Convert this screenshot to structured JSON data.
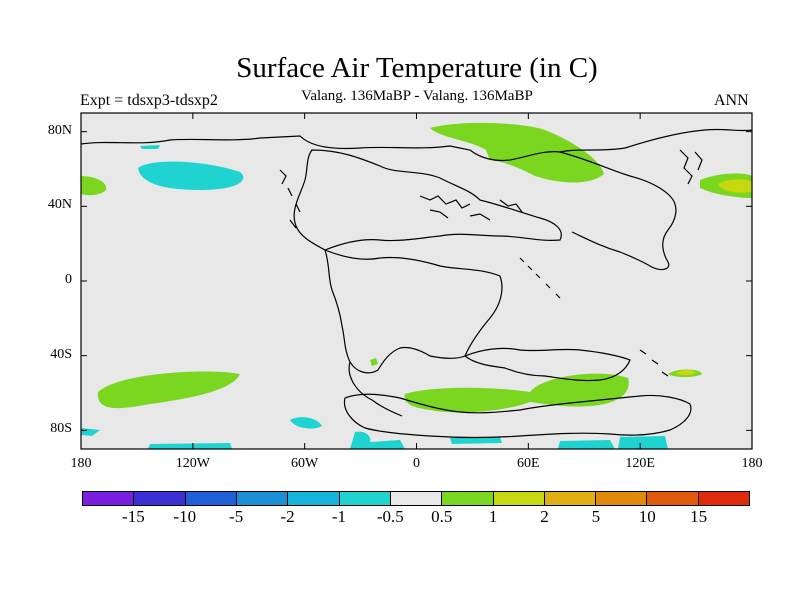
{
  "title": "Surface Air Temperature (in C)",
  "subtitle": "Valang. 136MaBP - Valang. 136MaBP",
  "expt": "Expt = tdsxp3-tdsxp2",
  "period": "ANN",
  "map": {
    "lat_labels": [
      "80N",
      "40N",
      "0",
      "40S",
      "80S"
    ],
    "lon_labels": [
      "180",
      "120W",
      "60W",
      "0",
      "60E",
      "120E",
      "180"
    ],
    "lat_values": [
      80,
      40,
      0,
      -40,
      -80
    ],
    "lon_values": [
      -180,
      -120,
      -60,
      0,
      60,
      120,
      180
    ],
    "lat_range": [
      -90,
      90
    ],
    "lon_range": [
      -180,
      180
    ],
    "background_color": "#e8e8e8"
  },
  "colorbar": {
    "colors": [
      "#7a1fe0",
      "#3a2fd4",
      "#1f5fd8",
      "#1a8fd6",
      "#14b5dc",
      "#1fd4d0",
      "#e8e8e8",
      "#7ad61f",
      "#c8d80f",
      "#e0b012",
      "#e08a0c",
      "#e05a0c",
      "#e02a0c"
    ],
    "labels": [
      "-15",
      "-10",
      "-5",
      "-2",
      "-1",
      "-0.5",
      "0.5",
      "1",
      "2",
      "5",
      "10",
      "15"
    ],
    "label_names": [
      "cb-label-m15",
      "cb-label-m10",
      "cb-label-m5",
      "cb-label-m2",
      "cb-label-m1",
      "cb-label-m05",
      "cb-label-05",
      "cb-label-1",
      "cb-label-2",
      "cb-label-5",
      "cb-label-10",
      "cb-label-15"
    ]
  }
}
